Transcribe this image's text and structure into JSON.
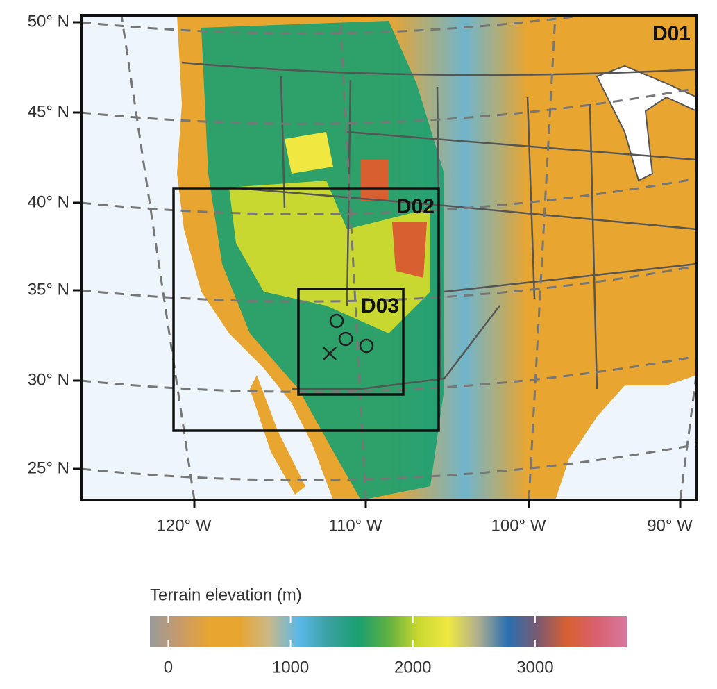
{
  "map": {
    "lat_labels": [
      "50° N",
      "45° N",
      "40° N",
      "35° N",
      "30° N",
      "25° N"
    ],
    "lon_labels": [
      "120° W",
      "110° W",
      "100° W",
      "90° W"
    ],
    "domains": [
      {
        "label": "D01"
      },
      {
        "label": "D02"
      },
      {
        "label": "D03"
      }
    ]
  },
  "colorbar": {
    "title": "Terrain elevation (m)",
    "range": [
      -150,
      3750
    ],
    "ticks": [
      0,
      1000,
      2000,
      3000
    ],
    "colors": [
      "#9a9a9a",
      "#c89a6a",
      "#e8a530",
      "#e8a530",
      "#c9b98a",
      "#5ab8e8",
      "#3aa0a0",
      "#1aa070",
      "#60b040",
      "#c8d830",
      "#f0e840",
      "#b0b090",
      "#2a70b0",
      "#7a5a70",
      "#d86030",
      "#d86070",
      "#d878a0"
    ]
  }
}
